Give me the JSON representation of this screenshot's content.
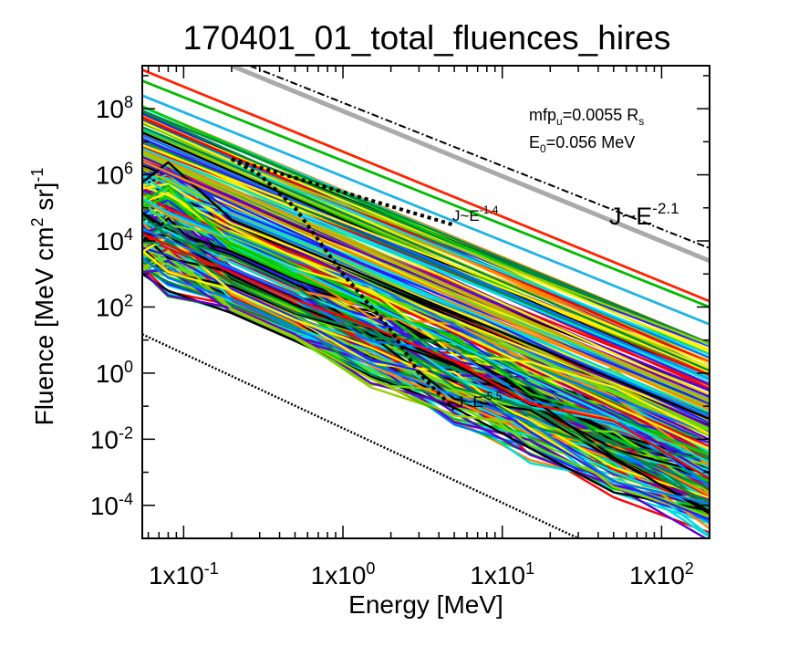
{
  "chart_data": {
    "type": "line",
    "title": "170401_01_total_fluences_hires",
    "xlabel": "Energy [MeV]",
    "ylabel": {
      "main": "Fluence [MeV cm",
      "sup1": "2",
      "mid": " sr]",
      "sup2": "-1"
    },
    "x_scale": "log",
    "y_scale": "log",
    "xlim": [
      0.055,
      200
    ],
    "ylim": [
      1e-05,
      2000000000.0
    ],
    "x_ticks": [
      {
        "value": 0.1,
        "base": "1x10",
        "exp": "-1"
      },
      {
        "value": 1,
        "base": "1x10",
        "exp": "0"
      },
      {
        "value": 10,
        "base": "1x10",
        "exp": "1"
      },
      {
        "value": 100,
        "base": "1x10",
        "exp": "2"
      }
    ],
    "y_ticks": [
      {
        "value": 0.0001,
        "base": "10",
        "exp": "-4"
      },
      {
        "value": 0.01,
        "base": "10",
        "exp": "-2"
      },
      {
        "value": 1,
        "base": "10",
        "exp": "0"
      },
      {
        "value": 100,
        "base": "10",
        "exp": "2"
      },
      {
        "value": 10000.0,
        "base": "10",
        "exp": "4"
      },
      {
        "value": 1000000.0,
        "base": "10",
        "exp": "6"
      },
      {
        "value": 100000000.0,
        "base": "10",
        "exp": "8"
      }
    ],
    "annotations": {
      "mfp": {
        "pre": "mfp",
        "sub": "u",
        "post": "=0.0055 R",
        "sub2": "s"
      },
      "e0": {
        "pre": "E",
        "sub": "0",
        "post": "=0.056 MeV"
      },
      "slope_a": {
        "text": "J~E",
        "exp": "-1.4"
      },
      "slope_b": {
        "text": "J~E",
        "exp": "-2.1"
      },
      "slope_c": {
        "text": "J~E",
        "exp": "-5.5"
      }
    },
    "reference_lines": [
      {
        "name": "gray",
        "color": "#aaaaaa",
        "points": [
          [
            0.2,
            2000000000.0
          ],
          [
            200,
            2500.0
          ]
        ]
      },
      {
        "name": "black-dashdot",
        "color": "#000000",
        "points": [
          [
            0.26,
            2000000000.0
          ],
          [
            200,
            6000.0
          ]
        ]
      },
      {
        "name": "black-dotted-lower",
        "color": "#000000",
        "points": [
          [
            0.055,
            15.0
          ],
          [
            30,
            1e-05
          ]
        ]
      },
      {
        "name": "spectrum-dotted-power",
        "color": "#000000",
        "points": [
          [
            0.2,
            3000000.0
          ],
          [
            5,
            30000.0
          ]
        ]
      },
      {
        "name": "spectrum-dotted-steep",
        "color": "#000000",
        "points": [
          [
            0.2,
            3000000.0
          ],
          [
            0.3,
            1000000.0
          ],
          [
            0.5,
            100000.0
          ],
          [
            1,
            1000.0
          ],
          [
            2,
            20.0
          ],
          [
            3,
            1
          ],
          [
            5,
            0.08
          ]
        ]
      }
    ],
    "highlighted_series": [
      {
        "color": "#ff2200",
        "points": [
          [
            0.055,
            1500000000.0
          ],
          [
            200,
            150.0
          ]
        ]
      },
      {
        "color": "#00bb00",
        "points": [
          [
            0.055,
            700000000.0
          ],
          [
            200,
            100.0
          ]
        ]
      },
      {
        "color": "#1eb4e6",
        "points": [
          [
            0.055,
            250000000.0
          ],
          [
            200,
            30.0
          ]
        ]
      }
    ],
    "series_bundle": {
      "description_count": 260,
      "colors": [
        "#ff0000",
        "#ff8800",
        "#ffee00",
        "#66dd00",
        "#00cc00",
        "#00dddd",
        "#0077ff",
        "#2222ff",
        "#6600cc",
        "#000000",
        "#008844",
        "#99cc00"
      ],
      "top_at_0_055": 120000000.0,
      "bottom_at_0_055": 1000.0,
      "top_at_200": 8,
      "bottom_at_200": 3e-05
    }
  }
}
